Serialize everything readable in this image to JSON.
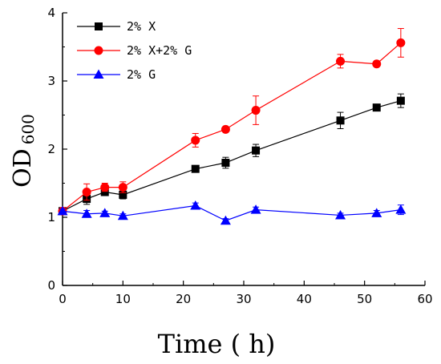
{
  "chart_data": {
    "type": "line",
    "title": "",
    "xlabel": "Time ( h)",
    "ylabel": "OD",
    "ylabel_subscript": "600",
    "xlim": [
      0,
      60
    ],
    "ylim": [
      0,
      4
    ],
    "xticks": [
      0,
      10,
      20,
      30,
      40,
      50,
      60
    ],
    "yticks": [
      0,
      1,
      2,
      3,
      4
    ],
    "grid": false,
    "legend_position": "top-left",
    "series": [
      {
        "name": "2% X",
        "color": "#000000",
        "marker": "square",
        "x": [
          0,
          4,
          7,
          10,
          22,
          27,
          32,
          46,
          52,
          56
        ],
        "y": [
          1.09,
          1.27,
          1.37,
          1.33,
          1.71,
          1.8,
          1.98,
          2.42,
          2.61,
          2.71
        ],
        "err": [
          0.04,
          0.08,
          0.05,
          0.06,
          0.03,
          0.08,
          0.09,
          0.12,
          0.03,
          0.1
        ]
      },
      {
        "name": "2% X+2% G",
        "color": "#ff0000",
        "marker": "circle",
        "x": [
          0,
          4,
          7,
          10,
          22,
          27,
          32,
          46,
          52,
          56
        ],
        "y": [
          1.09,
          1.37,
          1.44,
          1.44,
          2.13,
          2.29,
          2.57,
          3.29,
          3.25,
          3.56
        ],
        "err": [
          0.04,
          0.12,
          0.06,
          0.08,
          0.1,
          0.03,
          0.21,
          0.1,
          0.03,
          0.21
        ]
      },
      {
        "name": "2% G",
        "color": "#0000ff",
        "marker": "triangle",
        "x": [
          0,
          4,
          7,
          10,
          22,
          27,
          32,
          46,
          52,
          56
        ],
        "y": [
          1.09,
          1.05,
          1.06,
          1.02,
          1.17,
          0.95,
          1.11,
          1.03,
          1.06,
          1.11
        ],
        "err": [
          0.03,
          0.05,
          0.03,
          0.03,
          0.04,
          0.03,
          0.04,
          0.03,
          0.04,
          0.07
        ]
      }
    ]
  }
}
